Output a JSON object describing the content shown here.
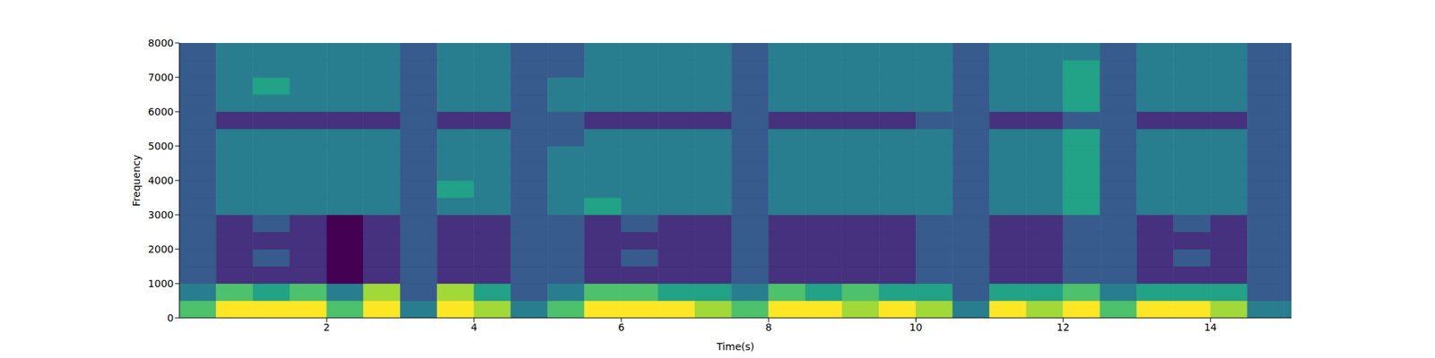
{
  "chart_data": {
    "type": "heatmap",
    "x_label": "Time(s)",
    "y_label": "Frequency",
    "xlim": [
      0,
      15.1
    ],
    "xticks": [
      2,
      4,
      6,
      8,
      10,
      12,
      14
    ],
    "ylim": [
      0,
      8000
    ],
    "yticks": [
      0,
      1000,
      2000,
      3000,
      4000,
      5000,
      6000,
      7000,
      8000
    ],
    "x_edges": [
      0,
      0.5,
      1,
      1.5,
      2,
      2.5,
      3,
      3.5,
      4,
      4.5,
      5,
      5.5,
      6,
      6.5,
      7,
      7.5,
      8,
      8.5,
      9,
      9.5,
      10,
      10.5,
      11,
      11.5,
      12,
      12.5,
      13,
      13.5,
      14,
      14.5,
      15,
      15.1
    ],
    "y_edges": [
      0,
      500,
      1000,
      1500,
      2000,
      2500,
      3000,
      3500,
      4000,
      4500,
      5000,
      5500,
      6000,
      6500,
      7000,
      7500,
      8000
    ],
    "cells": [
      [
        7,
        9,
        9,
        9,
        7,
        9,
        5,
        9,
        8,
        5,
        7,
        9,
        9,
        9,
        8,
        7,
        9,
        9,
        8,
        9,
        8,
        5,
        9,
        8,
        9,
        7,
        9,
        9,
        8,
        5,
        5
      ],
      [
        5,
        7,
        6,
        7,
        5,
        8,
        4,
        8,
        6,
        4,
        5,
        7,
        7,
        6,
        6,
        5,
        7,
        6,
        7,
        6,
        6,
        4,
        6,
        6,
        7,
        5,
        6,
        6,
        6,
        4,
        4
      ],
      [
        4,
        3,
        3,
        3,
        2,
        3,
        4,
        3,
        3,
        4,
        4,
        3,
        3,
        3,
        3,
        4,
        3,
        3,
        3,
        3,
        4,
        4,
        3,
        3,
        4,
        4,
        3,
        3,
        3,
        4,
        4
      ],
      [
        4,
        3,
        4,
        3,
        2,
        3,
        4,
        3,
        3,
        4,
        4,
        3,
        4,
        3,
        3,
        4,
        3,
        3,
        3,
        3,
        4,
        4,
        3,
        3,
        4,
        4,
        3,
        4,
        3,
        4,
        4
      ],
      [
        4,
        3,
        3,
        3,
        2,
        3,
        4,
        3,
        3,
        4,
        4,
        3,
        3,
        3,
        3,
        4,
        3,
        3,
        3,
        3,
        4,
        4,
        3,
        3,
        4,
        4,
        3,
        3,
        3,
        4,
        4
      ],
      [
        4,
        3,
        4,
        3,
        2,
        3,
        4,
        3,
        3,
        4,
        4,
        3,
        4,
        3,
        3,
        4,
        3,
        3,
        3,
        3,
        4,
        4,
        3,
        3,
        4,
        4,
        3,
        4,
        3,
        4,
        4
      ],
      [
        4,
        5,
        5,
        5,
        5,
        5,
        4,
        5,
        5,
        4,
        5,
        6,
        5,
        5,
        5,
        4,
        5,
        5,
        5,
        5,
        5,
        4,
        5,
        5,
        6,
        4,
        5,
        5,
        5,
        4,
        4
      ],
      [
        4,
        5,
        5,
        5,
        5,
        5,
        4,
        6,
        5,
        4,
        5,
        5,
        5,
        5,
        5,
        4,
        5,
        5,
        5,
        5,
        5,
        4,
        5,
        5,
        6,
        4,
        5,
        5,
        5,
        4,
        4
      ],
      [
        4,
        5,
        5,
        5,
        5,
        5,
        4,
        5,
        5,
        4,
        5,
        5,
        5,
        5,
        5,
        4,
        5,
        5,
        5,
        5,
        5,
        4,
        5,
        5,
        6,
        4,
        5,
        5,
        5,
        4,
        4
      ],
      [
        4,
        5,
        5,
        5,
        5,
        5,
        4,
        5,
        5,
        4,
        5,
        5,
        5,
        5,
        5,
        4,
        5,
        5,
        5,
        5,
        5,
        4,
        5,
        5,
        6,
        4,
        5,
        5,
        5,
        4,
        4
      ],
      [
        4,
        5,
        5,
        5,
        5,
        5,
        4,
        5,
        5,
        4,
        4,
        5,
        5,
        5,
        5,
        4,
        5,
        5,
        5,
        5,
        5,
        4,
        5,
        5,
        6,
        4,
        5,
        5,
        5,
        4,
        4
      ],
      [
        4,
        3,
        3,
        3,
        3,
        3,
        4,
        3,
        3,
        4,
        4,
        3,
        3,
        3,
        3,
        4,
        3,
        3,
        3,
        3,
        4,
        4,
        3,
        3,
        4,
        4,
        3,
        3,
        3,
        4,
        4
      ],
      [
        4,
        5,
        5,
        5,
        5,
        5,
        4,
        5,
        5,
        4,
        5,
        5,
        5,
        5,
        5,
        4,
        5,
        5,
        5,
        5,
        5,
        4,
        5,
        5,
        6,
        4,
        5,
        5,
        5,
        4,
        4
      ],
      [
        4,
        5,
        6,
        5,
        5,
        5,
        4,
        5,
        5,
        4,
        5,
        5,
        5,
        5,
        5,
        4,
        5,
        5,
        5,
        5,
        5,
        4,
        5,
        5,
        6,
        4,
        5,
        5,
        5,
        4,
        4
      ],
      [
        4,
        5,
        5,
        5,
        5,
        5,
        4,
        5,
        5,
        4,
        4,
        5,
        5,
        5,
        5,
        4,
        5,
        5,
        5,
        5,
        5,
        4,
        5,
        5,
        6,
        4,
        5,
        5,
        5,
        4,
        4
      ],
      [
        4,
        5,
        5,
        5,
        5,
        5,
        4,
        5,
        5,
        4,
        4,
        5,
        5,
        5,
        5,
        4,
        5,
        5,
        5,
        5,
        5,
        4,
        5,
        5,
        5,
        4,
        5,
        5,
        5,
        4,
        4
      ]
    ]
  }
}
